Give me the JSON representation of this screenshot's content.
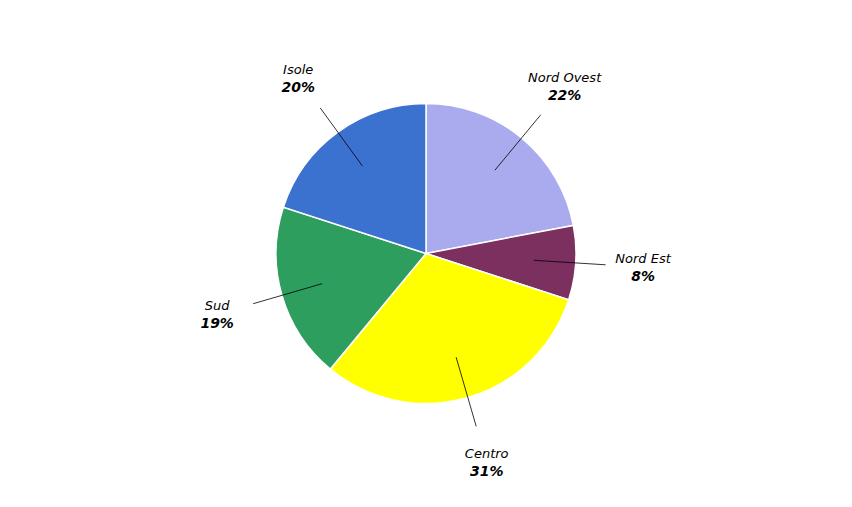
{
  "chart_data": {
    "type": "pie",
    "categories": [
      "Nord Ovest",
      "Nord Est",
      "Centro",
      "Sud",
      "Isole"
    ],
    "values": [
      22,
      8,
      31,
      19,
      20
    ],
    "value_labels": [
      "22%",
      "8%",
      "31%",
      "19%",
      "20%"
    ],
    "colors": [
      "#AAAAEE",
      "#7B3060",
      "#FFFF00",
      "#2E9E5E",
      "#3B72D0"
    ],
    "data_labels": true
  }
}
